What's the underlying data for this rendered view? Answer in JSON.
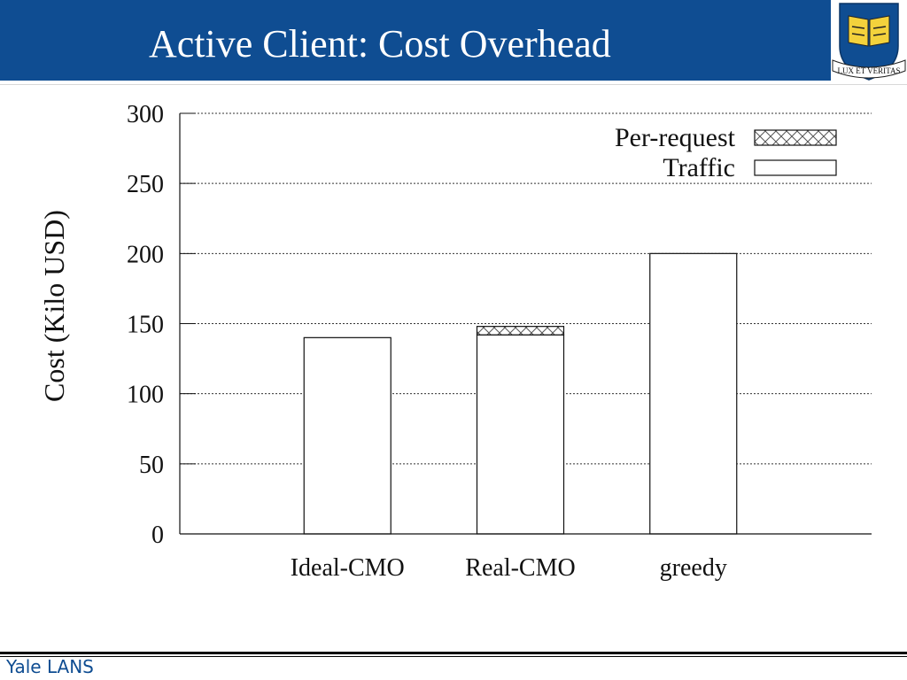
{
  "slide": {
    "title": "Active Client: Cost Overhead",
    "footer": "Yale LANS"
  },
  "logo": {
    "motto": "LUX ET VERITAS",
    "book_text_left": "אורים",
    "book_text_right": "ותמים"
  },
  "colors": {
    "title_bar": "#0f4d92",
    "footer_text": "#0f4d92",
    "shield": "#0f4d92",
    "book": "#f3d23c"
  },
  "chart_data": {
    "type": "bar",
    "stacked": true,
    "categories": [
      "Ideal-CMO",
      "Real-CMO",
      "greedy"
    ],
    "series": [
      {
        "name": "Traffic",
        "values": [
          140,
          142,
          200
        ],
        "fill": "white"
      },
      {
        "name": "Per-request",
        "values": [
          0,
          6,
          0
        ],
        "fill": "crosshatch"
      }
    ],
    "ylabel": "Cost (Kilo USD)",
    "xlabel": "",
    "ylim": [
      0,
      300
    ],
    "yticks": [
      "0",
      "50",
      "100",
      "150",
      "200",
      "250",
      "300"
    ],
    "grid": true,
    "legend_position": "top-right",
    "legend_order": [
      "Per-request",
      "Traffic"
    ]
  }
}
